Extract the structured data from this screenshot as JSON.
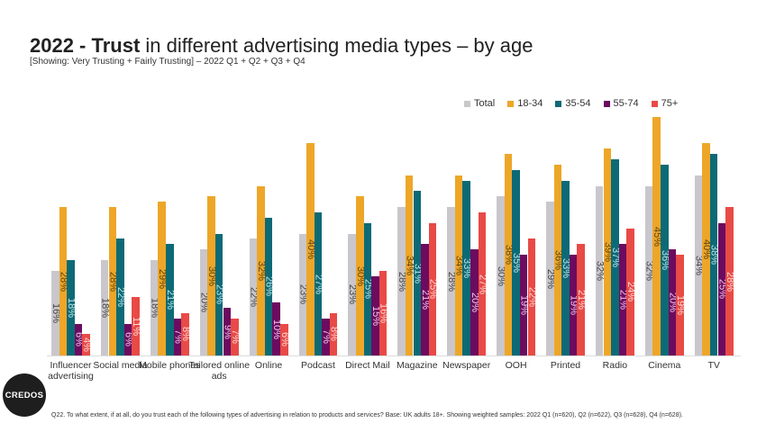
{
  "header": {
    "title_bold": "2022 - Trust",
    "title_rest": " in different advertising media types – by age",
    "subtitle": "[Showing: Very Trusting + Fairly Trusting] – 2022 Q1 + Q2 + Q3 + Q4"
  },
  "logo": "CREDOS",
  "footnote": "Q22. To what extent, if at all, do you trust each of the following types of advertising in relation to products and services? Base: UK adults 18+. Showing weighted samples: 2022 Q1 (n=620), Q2 (n=622), Q3 (n=628), Q4 (n=628).",
  "chart_data": {
    "type": "bar",
    "title": "2022 - Trust in different advertising media types – by age",
    "categories": [
      "Influencer advertising",
      "Social media",
      "Mobile phones",
      "Tailored online ads",
      "Online",
      "Podcast",
      "Direct Mail",
      "Magazine",
      "Newspaper",
      "OOH",
      "Printed",
      "Radio",
      "Cinema",
      "TV"
    ],
    "unit": "%",
    "ylim": [
      0,
      45
    ],
    "grid": false,
    "legend": "top-right",
    "series": [
      {
        "name": "Total",
        "color": "#c9c7cc",
        "label_color": "#444444",
        "values": [
          16,
          18,
          18,
          20,
          22,
          23,
          23,
          28,
          28,
          30,
          29,
          32,
          32,
          34
        ]
      },
      {
        "name": "18-34",
        "color": "#eda628",
        "label_color": "#5a4210",
        "values": [
          28,
          28,
          29,
          30,
          32,
          40,
          30,
          34,
          34,
          38,
          36,
          39,
          45,
          40
        ]
      },
      {
        "name": "35-54",
        "color": "#0c6a76",
        "label_color": "#bfe6ea",
        "values": [
          18,
          22,
          21,
          23,
          26,
          27,
          25,
          31,
          33,
          35,
          33,
          37,
          36,
          38
        ]
      },
      {
        "name": "55-74",
        "color": "#6c0b5f",
        "label_color": "#f0c8ea",
        "values": [
          6,
          6,
          7,
          9,
          10,
          7,
          15,
          21,
          20,
          19,
          19,
          21,
          20,
          25
        ]
      },
      {
        "name": "75+",
        "color": "#e84a46",
        "label_color": "#ffd9d6",
        "values": [
          4,
          11,
          8,
          7,
          6,
          8,
          16,
          25,
          27,
          22,
          21,
          24,
          19,
          28
        ]
      }
    ]
  }
}
